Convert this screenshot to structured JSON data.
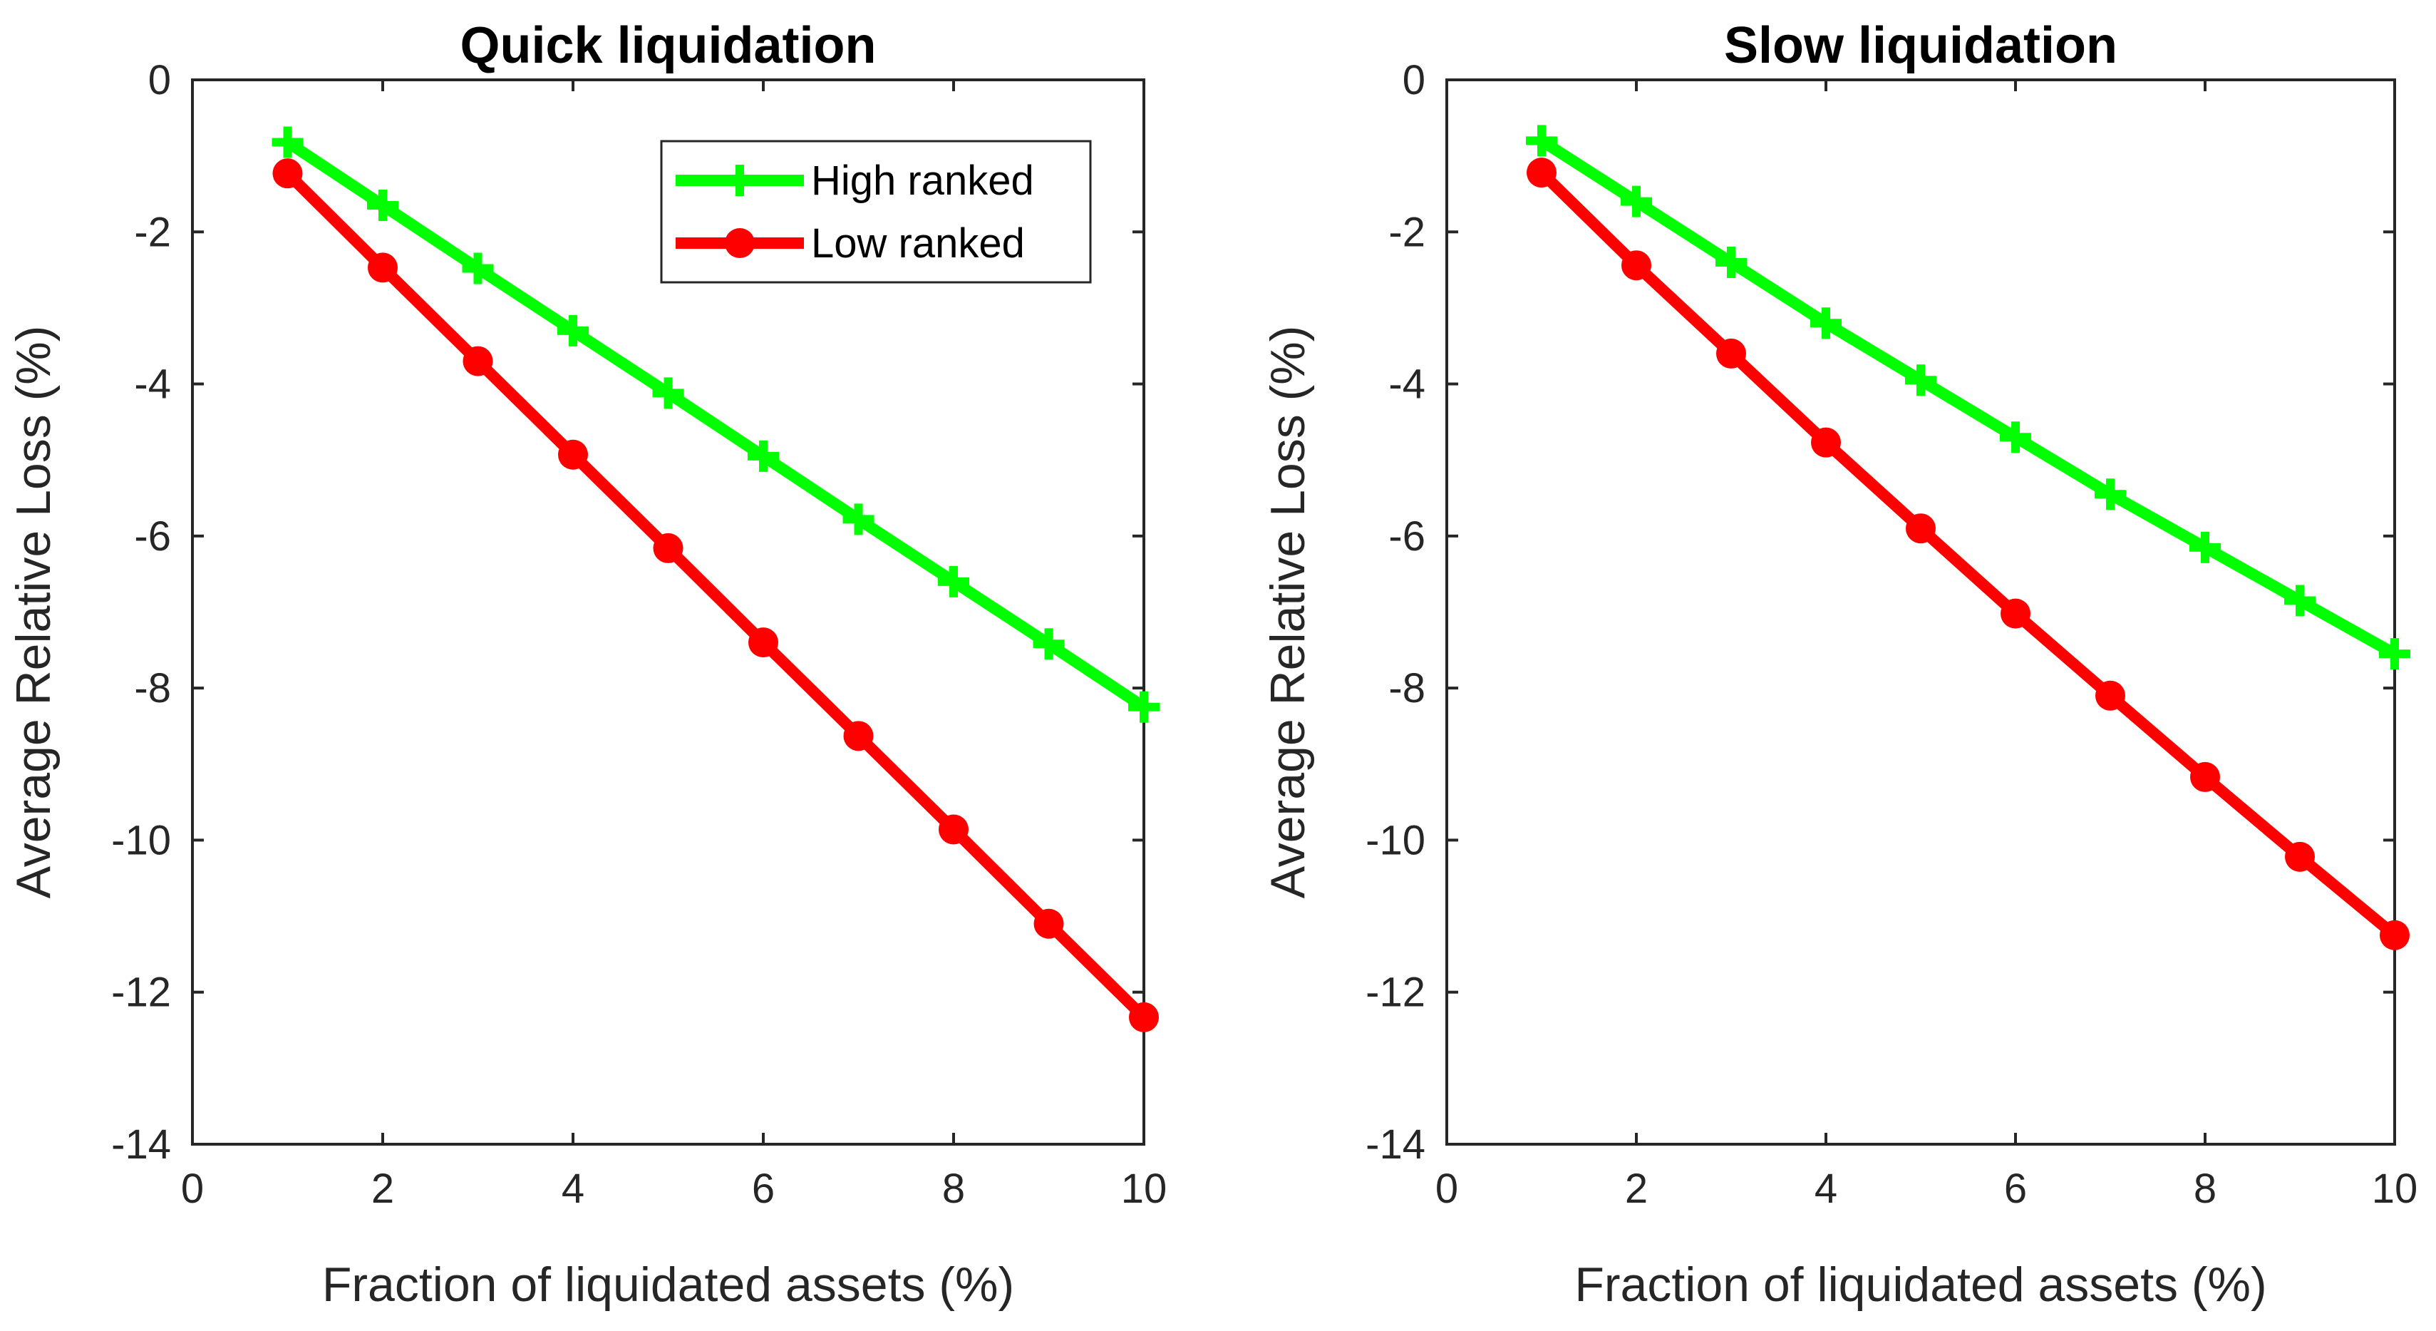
{
  "chart_data": [
    {
      "type": "line",
      "title": "Quick liquidation",
      "xlabel": "Fraction of liquidated assets (%)",
      "ylabel": "Average Relative Loss (%)",
      "xlim": [
        0,
        10
      ],
      "ylim": [
        -14,
        0
      ],
      "xticks": [
        0,
        2,
        4,
        6,
        8,
        10
      ],
      "yticks": [
        0,
        -2,
        -4,
        -6,
        -8,
        -10,
        -12,
        -14
      ],
      "x": [
        1,
        2,
        3,
        4,
        5,
        6,
        7,
        8,
        9,
        10
      ],
      "series": [
        {
          "name": "High ranked",
          "color": "#00ff00",
          "marker": "plus",
          "values": [
            -0.82,
            -1.65,
            -2.48,
            -3.3,
            -4.12,
            -4.95,
            -5.78,
            -6.6,
            -7.42,
            -8.25
          ]
        },
        {
          "name": "Low ranked",
          "color": "#ff0000",
          "marker": "circle",
          "values": [
            -1.23,
            -2.47,
            -3.7,
            -4.93,
            -6.16,
            -7.4,
            -8.63,
            -9.86,
            -11.1,
            -12.33
          ]
        }
      ],
      "legend": "top-right",
      "grid": false
    },
    {
      "type": "line",
      "title": "Slow liquidation",
      "xlabel": "Fraction of liquidated assets (%)",
      "ylabel": "Average Relative Loss (%)",
      "xlim": [
        0,
        10
      ],
      "ylim": [
        -14,
        0
      ],
      "xticks": [
        0,
        2,
        4,
        6,
        8,
        10
      ],
      "yticks": [
        0,
        -2,
        -4,
        -6,
        -8,
        -10,
        -12,
        -14
      ],
      "x": [
        1,
        2,
        3,
        4,
        5,
        6,
        7,
        8,
        9,
        10
      ],
      "series": [
        {
          "name": "High ranked",
          "color": "#00ff00",
          "marker": "plus",
          "values": [
            -0.8,
            -1.6,
            -2.4,
            -3.2,
            -3.95,
            -4.7,
            -5.45,
            -6.15,
            -6.85,
            -7.55
          ]
        },
        {
          "name": "Low ranked",
          "color": "#ff0000",
          "marker": "circle",
          "values": [
            -1.22,
            -2.44,
            -3.6,
            -4.77,
            -5.9,
            -7.02,
            -8.1,
            -9.17,
            -10.22,
            -11.25
          ]
        }
      ],
      "grid": false
    }
  ]
}
